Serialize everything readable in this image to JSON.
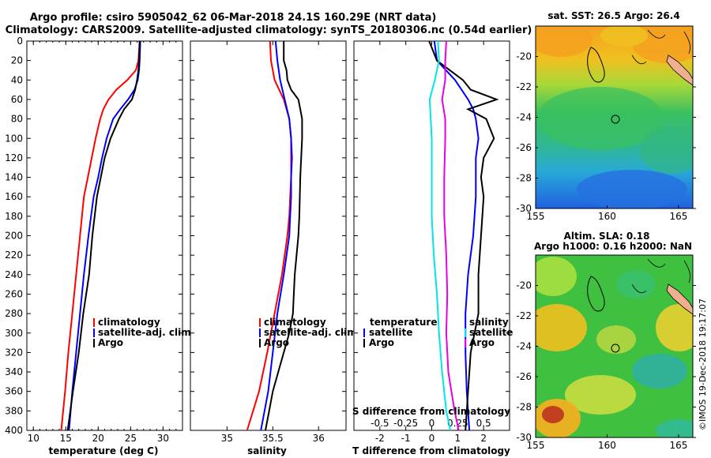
{
  "header": {
    "line1": "Argo profile: csiro 5905042_62 06-Mar-2018 24.1S 160.29E (NRT data)",
    "line2": "Climatology: CARS2009. Satellite-adjusted climatology: synTS_20180306.nc (0.54d earlier)"
  },
  "watermark": "©IMOS 19-Dec-2018 19:17:07",
  "colors": {
    "climatology": "#ff0000",
    "satellite": "#0000ff",
    "argo": "#000000",
    "s_satellite": "#00e5e5",
    "s_argo": "#e600e6"
  },
  "chart_data": [
    {
      "type": "line",
      "panel": "temperature",
      "title": "",
      "xlabel": "temperature (deg C)",
      "ylabel": "",
      "xlim": [
        9,
        33
      ],
      "ylim": [
        400,
        0
      ],
      "xticks": [
        "10",
        "15",
        "20",
        "25",
        "30"
      ],
      "xtick_values": [
        10,
        15,
        20,
        25,
        30
      ],
      "yticks": [
        "0",
        "20",
        "40",
        "60",
        "80",
        "100",
        "120",
        "140",
        "160",
        "180",
        "200",
        "220",
        "240",
        "260",
        "280",
        "300",
        "320",
        "340",
        "360",
        "380",
        "400"
      ],
      "ytick_values": [
        0,
        20,
        40,
        60,
        80,
        100,
        120,
        140,
        160,
        180,
        200,
        220,
        240,
        260,
        280,
        300,
        320,
        340,
        360,
        380,
        400
      ],
      "legend": [
        "climatology",
        "satellite-adj. clim.",
        "Argo"
      ],
      "series": [
        {
          "name": "climatology",
          "color": "#ff0000",
          "depth": [
            0,
            20,
            30,
            40,
            50,
            60,
            70,
            80,
            100,
            120,
            140,
            160,
            200,
            240,
            280,
            320,
            360,
            400
          ],
          "values": [
            26.4,
            26.2,
            25.8,
            24.5,
            22.8,
            21.6,
            20.8,
            20.3,
            19.6,
            19.0,
            18.4,
            17.8,
            17.2,
            16.6,
            16.0,
            15.4,
            14.9,
            14.3
          ]
        },
        {
          "name": "satellite-adj. clim.",
          "color": "#0000ff",
          "depth": [
            0,
            20,
            30,
            40,
            50,
            60,
            70,
            80,
            100,
            120,
            140,
            160,
            200,
            240,
            280,
            320,
            360,
            400
          ],
          "values": [
            26.5,
            26.4,
            26.3,
            26.1,
            25.6,
            24.6,
            23.4,
            22.3,
            21.3,
            20.6,
            20.0,
            19.3,
            18.5,
            17.8,
            17.2,
            16.6,
            16.0,
            15.5
          ]
        },
        {
          "name": "Argo",
          "color": "#000000",
          "depth": [
            0,
            20,
            30,
            40,
            50,
            60,
            70,
            80,
            100,
            120,
            140,
            160,
            200,
            240,
            280,
            320,
            360,
            400
          ],
          "values": [
            26.4,
            26.3,
            26.2,
            26.0,
            25.7,
            25.2,
            24.0,
            23.2,
            21.9,
            21.0,
            20.4,
            19.8,
            19.1,
            18.6,
            17.7,
            17.0,
            16.1,
            15.3
          ]
        }
      ]
    },
    {
      "type": "line",
      "panel": "salinity",
      "xlabel": "salinity",
      "xlim": [
        34.6,
        36.3
      ],
      "ylim": [
        400,
        0
      ],
      "xticks": [
        "35",
        "35.5",
        "36"
      ],
      "xtick_values": [
        35,
        35.5,
        36
      ],
      "legend": [
        "climatology",
        "satellite-adj. clim.",
        "Argo"
      ],
      "series": [
        {
          "name": "climatology",
          "color": "#ff0000",
          "depth": [
            0,
            20,
            40,
            60,
            80,
            100,
            120,
            140,
            160,
            180,
            200,
            240,
            280,
            320,
            360,
            400
          ],
          "values": [
            35.47,
            35.48,
            35.52,
            35.62,
            35.68,
            35.7,
            35.7,
            35.7,
            35.69,
            35.68,
            35.66,
            35.6,
            35.52,
            35.44,
            35.35,
            35.22
          ]
        },
        {
          "name": "satellite-adj. clim.",
          "color": "#0000ff",
          "depth": [
            0,
            20,
            40,
            60,
            80,
            100,
            120,
            140,
            160,
            180,
            200,
            240,
            280,
            320,
            360,
            400
          ],
          "values": [
            35.53,
            35.55,
            35.58,
            35.63,
            35.68,
            35.7,
            35.71,
            35.7,
            35.7,
            35.69,
            35.68,
            35.62,
            35.55,
            35.5,
            35.45,
            35.37
          ]
        },
        {
          "name": "Argo",
          "color": "#000000",
          "depth": [
            0,
            20,
            30,
            40,
            50,
            60,
            70,
            80,
            100,
            140,
            180,
            200,
            220,
            240,
            260,
            280,
            300,
            320,
            340,
            360,
            380,
            400
          ],
          "values": [
            35.62,
            35.62,
            35.65,
            35.66,
            35.7,
            35.78,
            35.8,
            35.82,
            35.82,
            35.8,
            35.79,
            35.78,
            35.76,
            35.74,
            35.73,
            35.72,
            35.68,
            35.62,
            35.56,
            35.5,
            35.46,
            35.42
          ]
        }
      ]
    },
    {
      "type": "line",
      "panel": "difference",
      "xlabel": "T difference from climatology",
      "xlabel_top": "S difference from climatology",
      "xlim": [
        -3,
        3
      ],
      "ylim": [
        400,
        0
      ],
      "xticks": [
        "-2",
        "-1",
        "0",
        "1",
        "2"
      ],
      "xtick_values": [
        -2,
        -1,
        0,
        1,
        2
      ],
      "xticks_top": [
        "-0.5",
        "-0.25",
        "0",
        "0.25",
        "0.5"
      ],
      "legend_left_title": "temperature",
      "legend_left": [
        "satellite",
        "Argo"
      ],
      "legend_right_title": "salinity",
      "legend_right": [
        "satellite",
        "Argo"
      ],
      "series": [
        {
          "name": "temperature satellite",
          "color": "#0000ff",
          "depth": [
            0,
            20,
            40,
            60,
            70,
            80,
            100,
            120,
            160,
            200,
            240,
            280,
            320,
            360,
            400
          ],
          "values": [
            0.1,
            0.2,
            0.9,
            1.4,
            1.6,
            1.7,
            1.8,
            1.7,
            1.7,
            1.6,
            1.4,
            1.3,
            1.3,
            1.35,
            1.45
          ]
        },
        {
          "name": "temperature Argo",
          "color": "#000000",
          "depth": [
            0,
            20,
            40,
            50,
            60,
            70,
            80,
            100,
            120,
            140,
            160,
            200,
            240,
            280,
            320,
            360,
            400
          ],
          "values": [
            -0.1,
            0.2,
            1.2,
            1.5,
            2.5,
            1.4,
            2.1,
            2.4,
            2.0,
            1.9,
            2.0,
            1.9,
            1.8,
            1.8,
            1.5,
            1.4,
            1.3
          ]
        },
        {
          "name": "salinity satellite",
          "color": "#00e5e5",
          "depth": [
            0,
            20,
            40,
            60,
            80,
            100,
            140,
            180,
            220,
            260,
            300,
            340,
            380,
            400
          ],
          "values": [
            0.06,
            0.07,
            0.03,
            -0.02,
            -0.01,
            0.0,
            0.0,
            0.0,
            0.02,
            0.05,
            0.07,
            0.1,
            0.14,
            0.18
          ]
        },
        {
          "name": "salinity Argo",
          "color": "#e600e6",
          "depth": [
            0,
            20,
            40,
            60,
            80,
            100,
            140,
            180,
            220,
            260,
            300,
            340,
            380,
            400
          ],
          "values": [
            0.14,
            0.13,
            0.13,
            0.1,
            0.13,
            0.13,
            0.12,
            0.12,
            0.14,
            0.15,
            0.14,
            0.16,
            0.22,
            0.26
          ]
        }
      ]
    },
    {
      "type": "heatmap",
      "panel": "sst-map",
      "title": "sat. SST: 26.5 Argo: 26.4",
      "xlim": [
        155,
        166
      ],
      "ylim": [
        -30,
        -18
      ],
      "xticks": [
        "155",
        "160",
        "165"
      ],
      "xtick_values": [
        155,
        160,
        165
      ],
      "yticks": [
        "-20",
        "-22",
        "-24",
        "-26",
        "-28",
        "-30"
      ],
      "ytick_values": [
        -20,
        -22,
        -24,
        -26,
        -28,
        -30
      ],
      "marker": {
        "lon": 160.29,
        "lat": -24.1
      }
    },
    {
      "type": "heatmap",
      "panel": "sla-map",
      "title": "Altim. SLA: 0.18",
      "subtitle": "Argo h1000: 0.16 h2000: NaN",
      "xlim": [
        155,
        166
      ],
      "ylim": [
        -30,
        -18
      ],
      "xticks": [
        "155",
        "160",
        "165"
      ],
      "xtick_values": [
        155,
        160,
        165
      ],
      "yticks": [
        "-20",
        "-22",
        "-24",
        "-26",
        "-28",
        "-30"
      ],
      "ytick_values": [
        -20,
        -22,
        -24,
        -26,
        -28,
        -30
      ],
      "marker": {
        "lon": 160.29,
        "lat": -24.1
      }
    }
  ]
}
